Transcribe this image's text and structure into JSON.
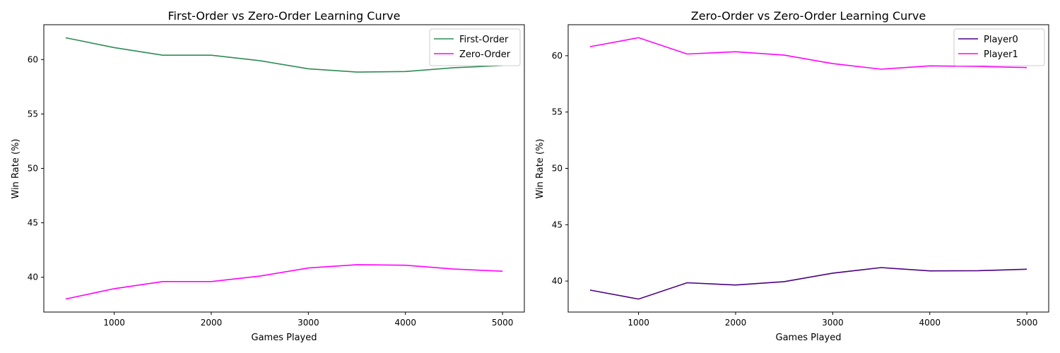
{
  "chart_data": [
    {
      "type": "line",
      "title": "First-Order vs Zero-Order Learning Curve",
      "xlabel": "Games Played",
      "ylabel": "Win Rate (%)",
      "x": [
        500,
        1000,
        1500,
        2000,
        2500,
        3000,
        3500,
        4000,
        4500,
        5000
      ],
      "xlim": [
        275,
        5225
      ],
      "ylim": [
        36.8,
        63.2
      ],
      "xticks": [
        1000,
        2000,
        3000,
        4000,
        5000
      ],
      "yticks": [
        40,
        45,
        50,
        55,
        60
      ],
      "legend_position": "top-right",
      "grid": false,
      "series": [
        {
          "name": "First-Order",
          "color": "#2e8b57",
          "values": [
            62.0,
            61.1,
            60.4,
            60.4,
            59.9,
            59.15,
            58.85,
            58.9,
            59.25,
            59.45
          ]
        },
        {
          "name": "Zero-Order",
          "color": "#ff00ff",
          "values": [
            38.0,
            38.95,
            39.6,
            39.6,
            40.1,
            40.85,
            41.15,
            41.1,
            40.75,
            40.55
          ]
        }
      ]
    },
    {
      "type": "line",
      "title": "Zero-Order vs Zero-Order Learning Curve",
      "xlabel": "Games Played",
      "ylabel": "Win Rate (%)",
      "x": [
        500,
        1000,
        1500,
        2000,
        2500,
        3000,
        3500,
        4000,
        4500,
        5000
      ],
      "xlim": [
        275,
        5225
      ],
      "ylim": [
        37.25,
        62.75
      ],
      "xticks": [
        1000,
        2000,
        3000,
        4000,
        5000
      ],
      "yticks": [
        40,
        45,
        50,
        55,
        60
      ],
      "legend_position": "top-right",
      "grid": false,
      "series": [
        {
          "name": "Player0",
          "color": "#4b0082",
          "values": [
            39.2,
            38.4,
            39.85,
            39.65,
            39.95,
            40.7,
            41.2,
            40.9,
            40.92,
            41.05
          ]
        },
        {
          "name": "Player1",
          "color": "#ff00ff",
          "values": [
            60.8,
            61.6,
            60.15,
            60.35,
            60.05,
            59.3,
            58.8,
            59.1,
            59.05,
            58.95
          ]
        }
      ]
    }
  ]
}
